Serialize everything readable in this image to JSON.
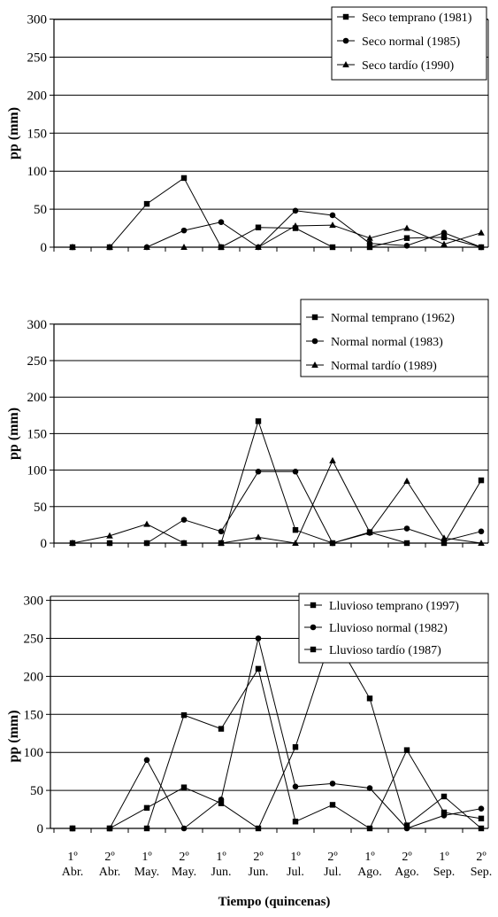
{
  "figure": {
    "xlabel": "Tiempo (quincenas)",
    "x_ticks": [
      {
        "top": "1º",
        "bottom": "Abr."
      },
      {
        "top": "2º",
        "bottom": "Abr."
      },
      {
        "top": "1º",
        "bottom": "May."
      },
      {
        "top": "2º",
        "bottom": "May."
      },
      {
        "top": "1º",
        "bottom": "Jun."
      },
      {
        "top": "2º",
        "bottom": "Jun."
      },
      {
        "top": "1º",
        "bottom": "Jul."
      },
      {
        "top": "2º",
        "bottom": "Jul."
      },
      {
        "top": "1º",
        "bottom": "Ago."
      },
      {
        "top": "2º",
        "bottom": "Ago."
      },
      {
        "top": "1º",
        "bottom": "Sep."
      },
      {
        "top": "2º",
        "bottom": "Sep."
      }
    ]
  },
  "chart_data": [
    {
      "type": "line",
      "title": "",
      "xlabel": "",
      "ylabel": "pp (mm)",
      "ylim": [
        0,
        300
      ],
      "yticks": [
        "0",
        "50",
        "100",
        "150",
        "200",
        "250",
        "300"
      ],
      "grid": true,
      "legend": "top-right",
      "x": [
        1,
        2,
        3,
        4,
        5,
        6,
        7,
        8,
        9,
        10,
        11,
        12
      ],
      "series": [
        {
          "name": "Seco temprano (1981)",
          "marker": "square",
          "values": [
            0,
            0,
            57,
            91,
            0,
            26,
            25,
            0,
            0,
            12,
            13,
            0
          ]
        },
        {
          "name": "Seco normal (1985)",
          "marker": "circle",
          "values": [
            0,
            0,
            0,
            22,
            33,
            0,
            48,
            42,
            5,
            2,
            19,
            0
          ]
        },
        {
          "name": "Seco tardío (1990)",
          "marker": "triangle",
          "values": [
            0,
            0,
            0,
            0,
            0,
            0,
            28,
            29,
            12,
            25,
            4,
            19
          ]
        }
      ]
    },
    {
      "type": "line",
      "title": "",
      "xlabel": "",
      "ylabel": "pp (mm)",
      "ylim": [
        0,
        300
      ],
      "yticks": [
        "0",
        "50",
        "100",
        "150",
        "200",
        "250",
        "300"
      ],
      "grid": true,
      "legend": "top-right",
      "x": [
        1,
        2,
        3,
        4,
        5,
        6,
        7,
        8,
        9,
        10,
        11,
        12
      ],
      "series": [
        {
          "name": "Normal temprano (1962)",
          "marker": "square",
          "values": [
            0,
            0,
            0,
            0,
            0,
            167,
            18,
            0,
            15,
            0,
            0,
            86
          ]
        },
        {
          "name": "Normal normal (1983)",
          "marker": "circle",
          "values": [
            0,
            0,
            0,
            32,
            16,
            98,
            98,
            0,
            14,
            20,
            3,
            16
          ]
        },
        {
          "name": "Normal tardío (1989)",
          "marker": "triangle",
          "values": [
            0,
            10,
            26,
            0,
            0,
            8,
            0,
            113,
            15,
            85,
            7,
            0
          ]
        }
      ]
    },
    {
      "type": "line",
      "title": "",
      "xlabel": "",
      "ylabel": "pp (mm)",
      "ylim": [
        0,
        300
      ],
      "yticks": [
        "0",
        "50",
        "100",
        "150",
        "200",
        "250",
        "300"
      ],
      "grid": true,
      "legend": "top-right",
      "x": [
        1,
        2,
        3,
        4,
        5,
        6,
        7,
        8,
        9,
        10,
        11,
        12
      ],
      "series": [
        {
          "name": "Lluvioso temprano (1997)",
          "marker": "square",
          "values": [
            0,
            0,
            27,
            54,
            33,
            0,
            107,
            256,
            171,
            4,
            42,
            0
          ]
        },
        {
          "name": "Lluvioso normal (1982)",
          "marker": "circle",
          "values": [
            0,
            0,
            90,
            0,
            38,
            250,
            55,
            59,
            53,
            0,
            17,
            26
          ]
        },
        {
          "name": "Lluvioso tardío (1987)",
          "marker": "square",
          "values": [
            0,
            0,
            0,
            149,
            131,
            210,
            9,
            31,
            0,
            103,
            21,
            13
          ]
        }
      ]
    }
  ]
}
